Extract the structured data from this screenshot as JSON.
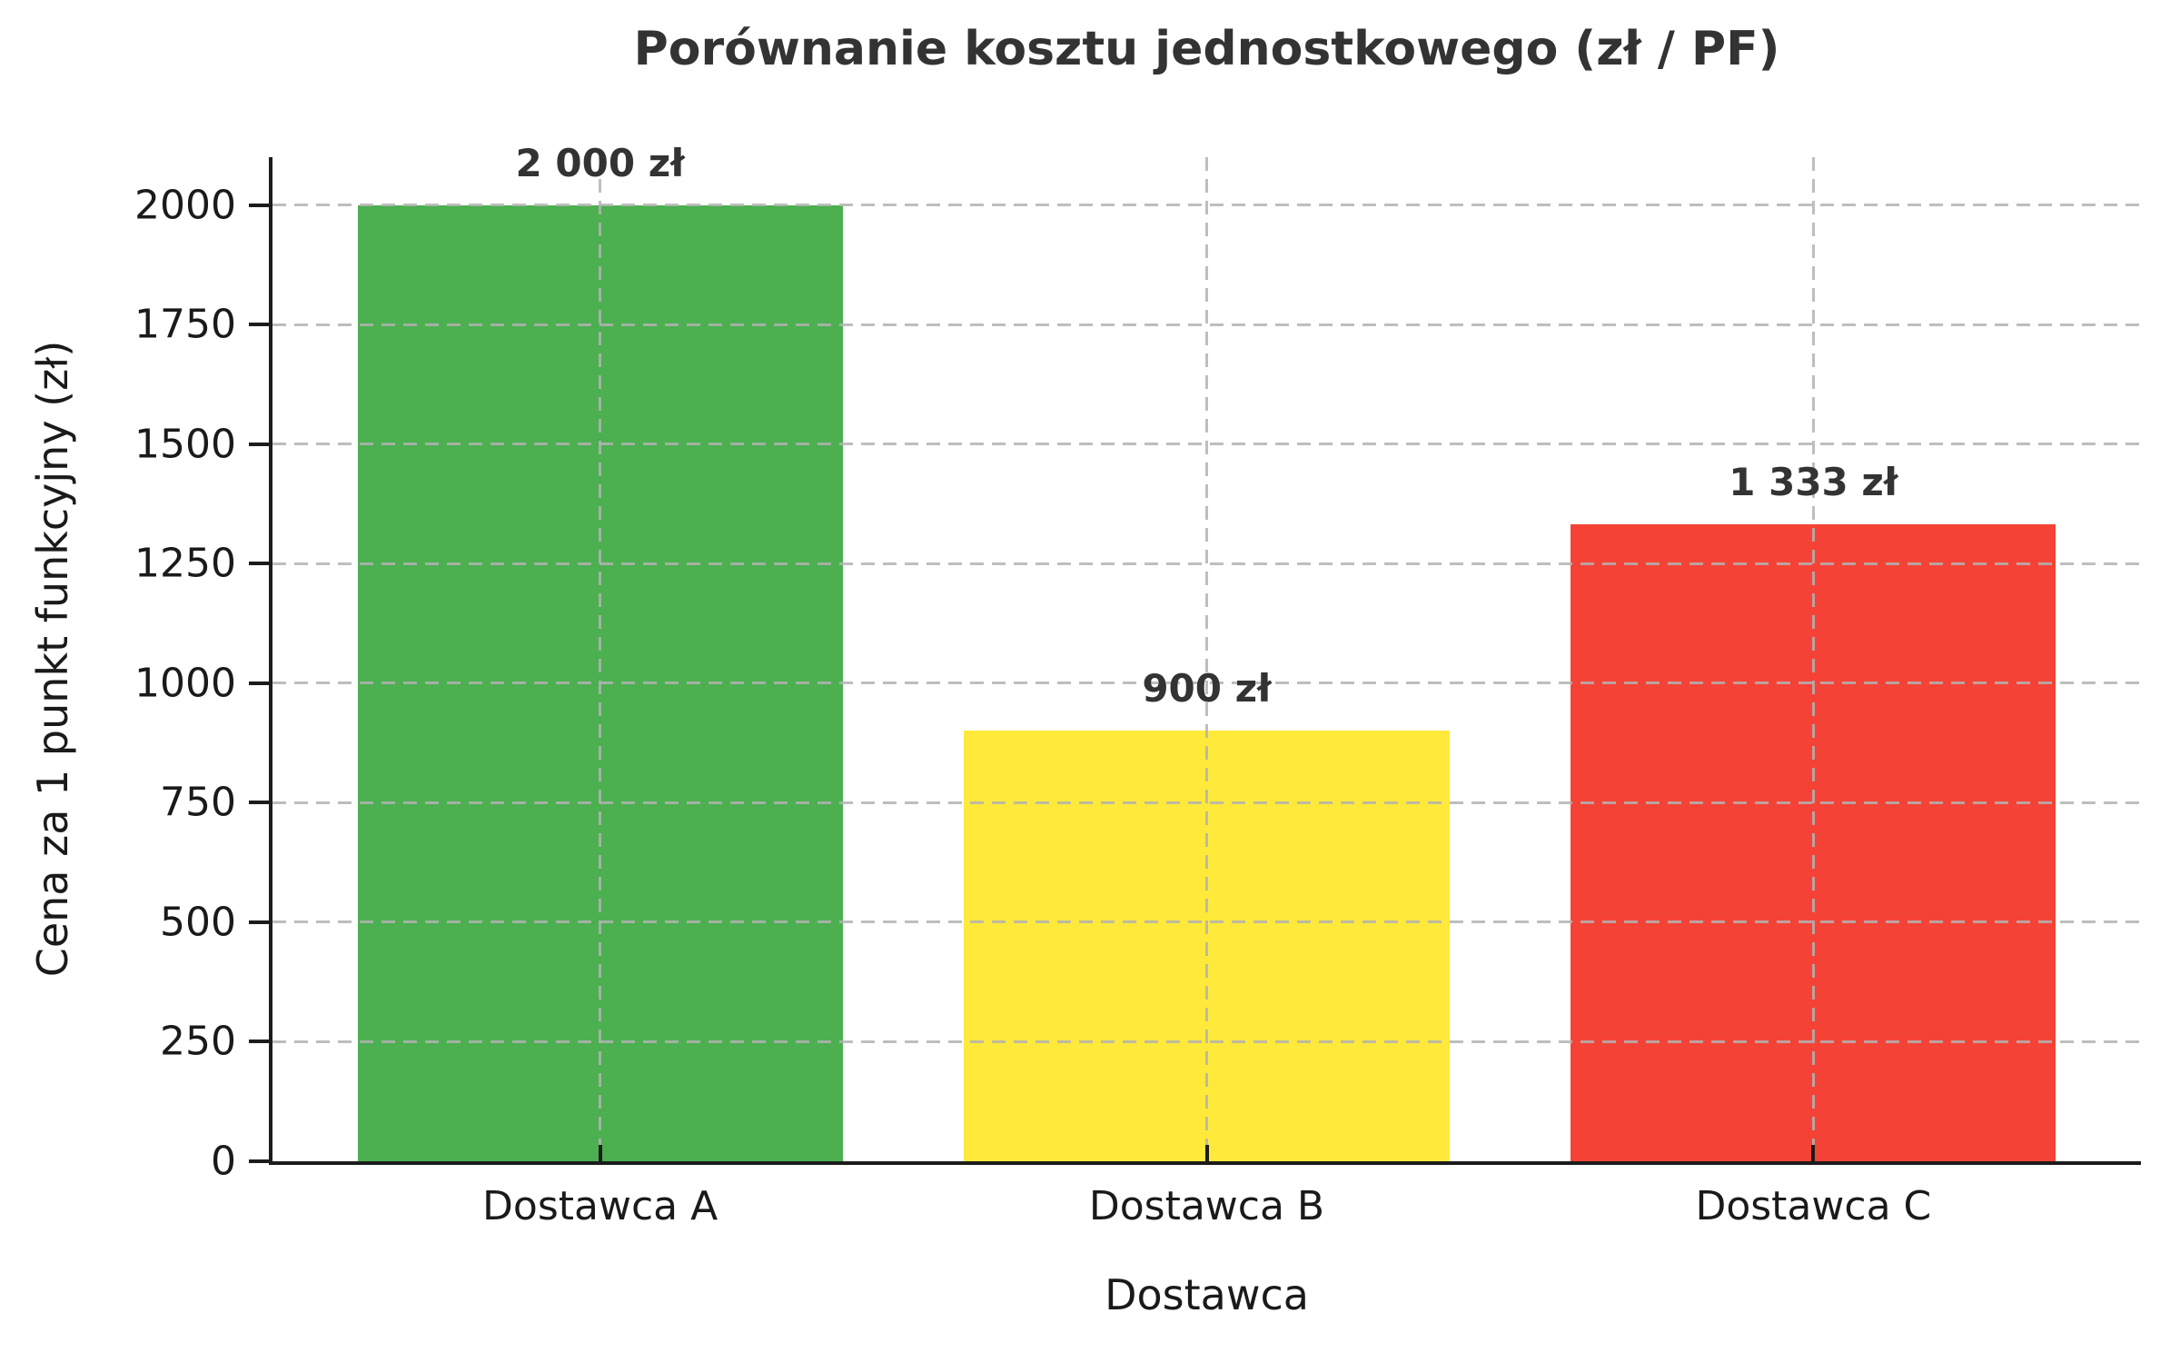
{
  "chart_data": {
    "type": "bar",
    "title": "Porównanie kosztu jednostkowego (zł / PF)",
    "xlabel": "Dostawca",
    "ylabel": "Cena za 1 punkt funkcyjny (zł)",
    "categories": [
      "Dostawca A",
      "Dostawca B",
      "Dostawca C"
    ],
    "values": [
      2000,
      900,
      1333
    ],
    "bar_labels": [
      "2 000 zł",
      "900 zł",
      "1 333 zł"
    ],
    "bar_colors": [
      "#4caf50",
      "#ffe93b",
      "#f44336"
    ],
    "yticks": [
      0,
      250,
      500,
      750,
      1000,
      1250,
      1500,
      1750,
      2000
    ],
    "ylim": [
      0,
      2100
    ],
    "bar_width_fraction": 0.8,
    "grid": "dashed, horizontal at yticks and vertical at bar centers, drawn over bars",
    "legend": "none",
    "colors": {
      "background": "#ffffff",
      "grid": "#b2b2b2",
      "spine": "#1c1c1c",
      "title_text": "#333333",
      "tick_text": "#1a1a1a",
      "value_label_text": "#333333"
    }
  }
}
